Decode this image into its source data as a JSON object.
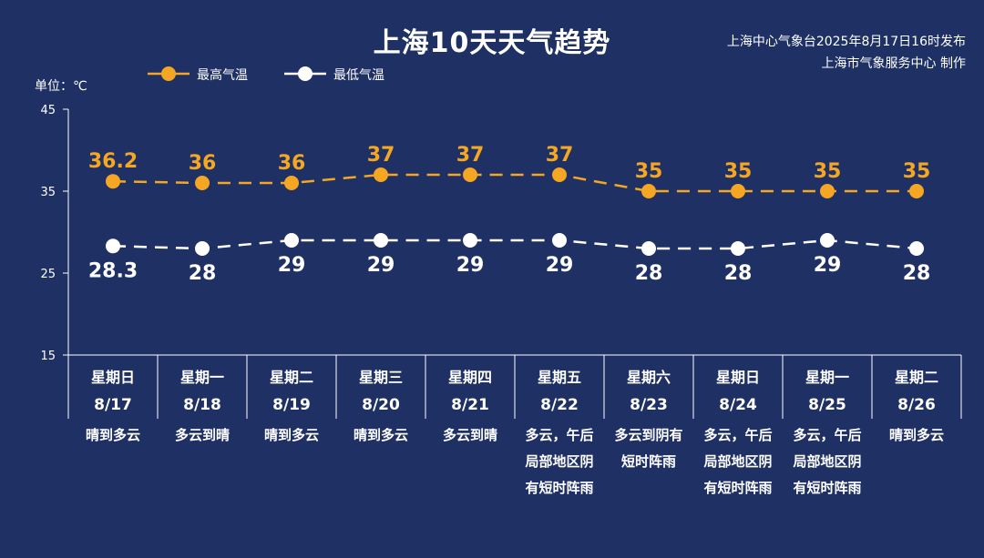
{
  "title": "上海10天天气趋势",
  "credits": {
    "line1": "上海中心气象台2025年8月17日16时发布",
    "line2": "上海市气象服务中心 制作"
  },
  "unit_label": "单位：℃",
  "colors": {
    "background": "#1f3164",
    "max": "#f5a623",
    "min": "#ffffff",
    "axis": "#ffffff"
  },
  "chart_data": {
    "type": "line",
    "title": "上海10天天气趋势",
    "ylim": [
      15,
      45
    ],
    "yticks": [
      15,
      25,
      35,
      45
    ],
    "legend_position": "top-left",
    "grid": false,
    "categories": [
      "8/17",
      "8/18",
      "8/19",
      "8/20",
      "8/21",
      "8/22",
      "8/23",
      "8/24",
      "8/25",
      "8/26"
    ],
    "weekdays": [
      "星期日",
      "星期一",
      "星期二",
      "星期三",
      "星期四",
      "星期五",
      "星期六",
      "星期日",
      "星期一",
      "星期二"
    ],
    "weather": [
      [
        "晴到多云"
      ],
      [
        "多云到晴"
      ],
      [
        "晴到多云"
      ],
      [
        "晴到多云"
      ],
      [
        "多云到晴"
      ],
      [
        "多云，午后",
        "局部地区阴",
        "有短时阵雨"
      ],
      [
        "多云到阴有",
        "短时阵雨"
      ],
      [
        "多云，午后",
        "局部地区阴",
        "有短时阵雨"
      ],
      [
        "多云，午后",
        "局部地区阴",
        "有短时阵雨"
      ],
      [
        "晴到多云"
      ]
    ],
    "series": [
      {
        "name": "最高气温",
        "values": [
          "36.2",
          "36",
          "36",
          "37",
          "37",
          "37",
          "35",
          "35",
          "35",
          "35"
        ]
      },
      {
        "name": "最低气温",
        "values": [
          "28.3",
          "28",
          "29",
          "29",
          "29",
          "29",
          "28",
          "28",
          "29",
          "28"
        ]
      }
    ]
  }
}
